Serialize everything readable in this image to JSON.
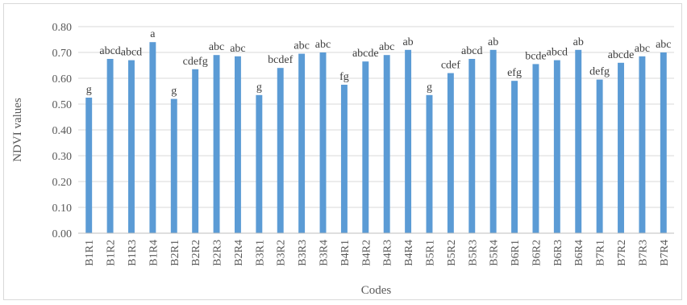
{
  "chart_data": {
    "type": "bar",
    "xlabel": "Codes",
    "ylabel": "NDVI values",
    "ylim": [
      0,
      0.8
    ],
    "yticks": [
      "0.00",
      "0.10",
      "0.20",
      "0.30",
      "0.40",
      "0.50",
      "0.60",
      "0.70",
      "0.80"
    ],
    "grid": true,
    "bar_color": "#5b9bd5",
    "categories": [
      "B1R1",
      "B1R2",
      "B1R3",
      "B1R4",
      "B2R1",
      "B2R2",
      "B2R3",
      "B2R4",
      "B3R1",
      "B3R2",
      "B3R3",
      "B3R4",
      "B4R1",
      "B4R2",
      "B4R3",
      "B4R4",
      "B5R1",
      "B5R2",
      "B5R3",
      "B5R4",
      "B6R1",
      "B6R2",
      "B6R3",
      "B6R4",
      "B7R1",
      "B7R2",
      "B7R3",
      "B7R4"
    ],
    "values": [
      0.525,
      0.675,
      0.67,
      0.74,
      0.52,
      0.635,
      0.69,
      0.685,
      0.535,
      0.64,
      0.695,
      0.7,
      0.575,
      0.665,
      0.69,
      0.71,
      0.535,
      0.62,
      0.675,
      0.71,
      0.59,
      0.655,
      0.67,
      0.71,
      0.595,
      0.66,
      0.685,
      0.7
    ],
    "labels": [
      "g",
      "abcd",
      "abcd",
      "a",
      "g",
      "cdefg",
      "abc",
      "abc",
      "g",
      "bcdef",
      "abc",
      "abc",
      "fg",
      "abcde",
      "abc",
      "ab",
      "g",
      "cdef",
      "abcd",
      "ab",
      "efg",
      "bcde",
      "abcd",
      "ab",
      "defg",
      "abcde",
      "abc",
      "abc"
    ]
  }
}
